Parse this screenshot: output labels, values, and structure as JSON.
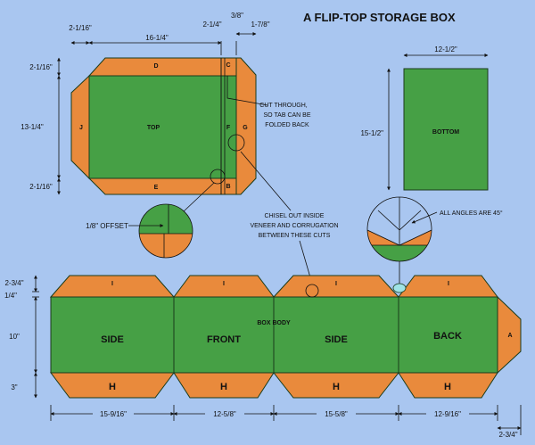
{
  "title": "A FLIP-TOP STORAGE BOX",
  "colors": {
    "background": "#a9c6f0",
    "panel_green": "#46a045",
    "flap_orange": "#e98a3c",
    "line": "#111111"
  },
  "lid": {
    "labels": {
      "top": "TOP",
      "d": "D",
      "c": "C",
      "j": "J",
      "f": "F",
      "g": "G",
      "e": "E",
      "b": "B"
    },
    "dims": {
      "left_offset": "2-1/16\"",
      "width": "16-1/4\"",
      "tab": "2-1/4\"",
      "gap": "3/8\"",
      "g_width": "1-7/8\"",
      "top_flap": "2-1/16\"",
      "height": "13-1/4\"",
      "bottom_flap": "2-1/16\""
    },
    "note_cut": [
      "CUT THROUGH,",
      "SO TAB CAN BE",
      "FOLDED BACK"
    ],
    "offset_label": "1/8\" OFFSET"
  },
  "bottom_panel": {
    "label": "BOTTOM",
    "width": "12-1/2\"",
    "height": "15-1/2\""
  },
  "angles_note": "ALL ANGLES ARE 45°",
  "chisel_note": [
    "CHISEL OUT INSIDE",
    "VENEER AND CORRUGATION",
    "BETWEEN THESE CUTS"
  ],
  "body": {
    "panels": [
      "SIDE",
      "FRONT",
      "SIDE",
      "BACK"
    ],
    "box_body": "BOX BODY",
    "flap_top": "I",
    "flap_bottom": "H",
    "end_tab": "A",
    "dims": {
      "top_flap": "2-3/4\"",
      "gap": "1/4\"",
      "height": "10\"",
      "bottom_flap": "3\"",
      "end_tab": "2-3/4\"",
      "widths": [
        "15-9/16\"",
        "12-5/8\"",
        "15-5/8\"",
        "12-9/16\""
      ]
    }
  }
}
